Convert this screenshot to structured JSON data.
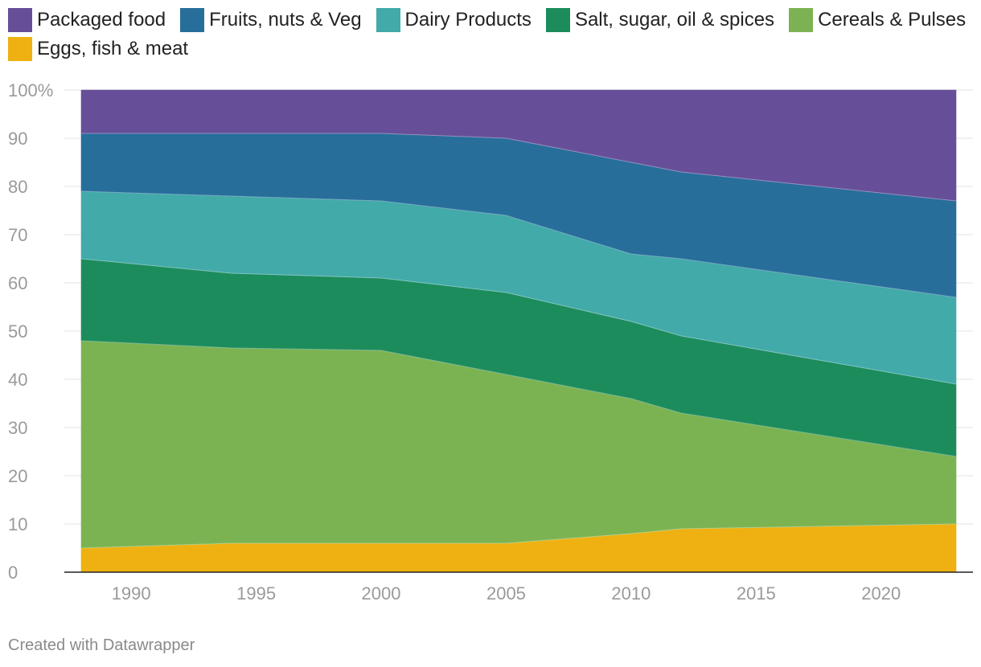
{
  "chart_data": {
    "type": "area",
    "stacked": true,
    "stack_order_bottom_to_top": [
      "Eggs, fish & meat",
      "Cereals & Pulses",
      "Salt, sugar, oil & spices",
      "Dairy Products",
      "Fruits, nuts & Veg",
      "Packaged food"
    ],
    "x": [
      1988,
      1994,
      2000,
      2005,
      2010,
      2012,
      2023
    ],
    "series": [
      {
        "name": "Eggs, fish & meat",
        "color": "#eeb111",
        "values": [
          5,
          6,
          6,
          6,
          8,
          9,
          10
        ]
      },
      {
        "name": "Cereals & Pulses",
        "color": "#7cb352",
        "values": [
          43,
          40.5,
          40,
          35,
          28,
          24,
          14
        ]
      },
      {
        "name": "Salt, sugar, oil & spices",
        "color": "#1d8c5c",
        "values": [
          17,
          15.5,
          15,
          17,
          16,
          16,
          15
        ]
      },
      {
        "name": "Dairy Products",
        "color": "#42aaa9",
        "values": [
          14,
          16,
          16,
          16,
          14,
          16,
          18
        ]
      },
      {
        "name": "Fruits, nuts & Veg",
        "color": "#276e9b",
        "values": [
          12,
          13,
          14,
          16,
          19,
          18,
          20
        ]
      },
      {
        "name": "Packaged food",
        "color": "#664f98",
        "values": [
          9,
          9,
          9,
          10,
          15,
          17,
          23
        ]
      }
    ],
    "legend_order": [
      "Packaged food",
      "Fruits, nuts & Veg",
      "Dairy Products",
      "Salt, sugar, oil & spices",
      "Cereals & Pulses",
      "Eggs, fish & meat"
    ],
    "xlim": [
      1988,
      2023
    ],
    "ylim": [
      0,
      100
    ],
    "x_ticks": [
      1990,
      1995,
      2000,
      2005,
      2010,
      2015,
      2020
    ],
    "x_tick_labels": [
      "1990",
      "1995",
      "2000",
      "2005",
      "2010",
      "2015",
      "2020"
    ],
    "y_ticks": [
      0,
      10,
      20,
      30,
      40,
      50,
      60,
      70,
      80,
      90,
      100
    ],
    "y_tick_labels": [
      "0",
      "10",
      "20",
      "30",
      "40",
      "50",
      "60",
      "70",
      "80",
      "90",
      "100%"
    ],
    "grid": true,
    "legend_position": "top-left",
    "title": "",
    "xlabel": "",
    "ylabel": ""
  },
  "footer": {
    "credit": "Created with Datawrapper"
  }
}
